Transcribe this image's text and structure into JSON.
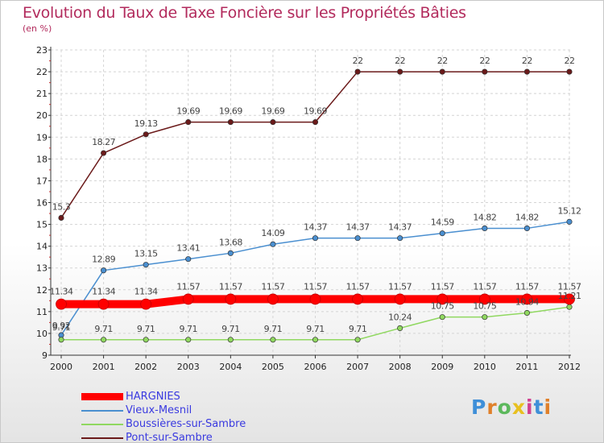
{
  "title": "Evolution du Taux de Taxe Foncière sur les Propriétés Bâties",
  "subtitle": "(en %)",
  "chart_data": {
    "type": "line",
    "title": "Evolution du Taux de Taxe Foncière sur les Propriétés Bâties",
    "ylabel": "(en %)",
    "xlabel": "",
    "x": [
      "2000",
      "2001",
      "2002",
      "2003",
      "2004",
      "2005",
      "2006",
      "2007",
      "2008",
      "2009",
      "2010",
      "2011",
      "2012"
    ],
    "ylim": [
      9,
      23
    ],
    "yticks": [
      9,
      10,
      11,
      12,
      13,
      14,
      15,
      16,
      17,
      18,
      19,
      20,
      21,
      22,
      23
    ],
    "legend_position": "bottom-left",
    "series": [
      {
        "name": "Pont-sur-Sambre",
        "color": "#6b1a1a",
        "values": [
          15.3,
          18.27,
          19.13,
          19.69,
          19.69,
          19.69,
          19.69,
          22,
          22,
          22,
          22,
          22,
          22
        ],
        "labels": [
          "15.3",
          "18.27",
          "19.13",
          "19.69",
          "19.69",
          "19.69",
          "19.69",
          "22",
          "22",
          "22",
          "22",
          "22",
          "22"
        ]
      },
      {
        "name": "Vieux-Mesnil",
        "color": "#4a8fd0",
        "values": [
          9.92,
          12.89,
          13.15,
          13.41,
          13.68,
          14.09,
          14.37,
          14.37,
          14.37,
          14.59,
          14.82,
          14.82,
          15.12
        ],
        "labels": [
          "9.92",
          "12.89",
          "13.15",
          "13.41",
          "13.68",
          "14.09",
          "14.37",
          "14.37",
          "14.37",
          "14.59",
          "14.82",
          "14.82",
          "15.12"
        ]
      },
      {
        "name": "Boussières-sur-Sambre",
        "color": "#90d860",
        "values": [
          9.71,
          9.71,
          9.71,
          9.71,
          9.71,
          9.71,
          9.71,
          9.71,
          10.24,
          10.75,
          10.75,
          10.94,
          11.21
        ],
        "labels": [
          "9.71",
          "9.71",
          "9.71",
          "9.71",
          "9.71",
          "9.71",
          "9.71",
          "9.71",
          "10.24",
          "10.75",
          "10.75",
          "10.94",
          "11.21"
        ]
      },
      {
        "name": "HARGNIES",
        "color": "#ff0000",
        "values": [
          11.34,
          11.34,
          11.34,
          11.57,
          11.57,
          11.57,
          11.57,
          11.57,
          11.57,
          11.57,
          11.57,
          11.57,
          11.57
        ],
        "labels": [
          "11.34",
          "11.34",
          "11.34",
          "11.57",
          "11.57",
          "11.57",
          "11.57",
          "11.57",
          "11.57",
          "11.57",
          "11.57",
          "11.57",
          "11.57"
        ]
      }
    ]
  },
  "legend": [
    {
      "name": "HARGNIES",
      "color": "#ff0000"
    },
    {
      "name": "Vieux-Mesnil",
      "color": "#4a8fd0"
    },
    {
      "name": "Boussières-sur-Sambre",
      "color": "#90d860"
    },
    {
      "name": "Pont-sur-Sambre",
      "color": "#6b1a1a"
    }
  ],
  "logo": {
    "text": "Proxiti",
    "colors": [
      "#3f8fd8",
      "#e0802a",
      "#5cb85c",
      "#e8c020",
      "#d04090",
      "#3f8fd8",
      "#e0802a"
    ]
  }
}
